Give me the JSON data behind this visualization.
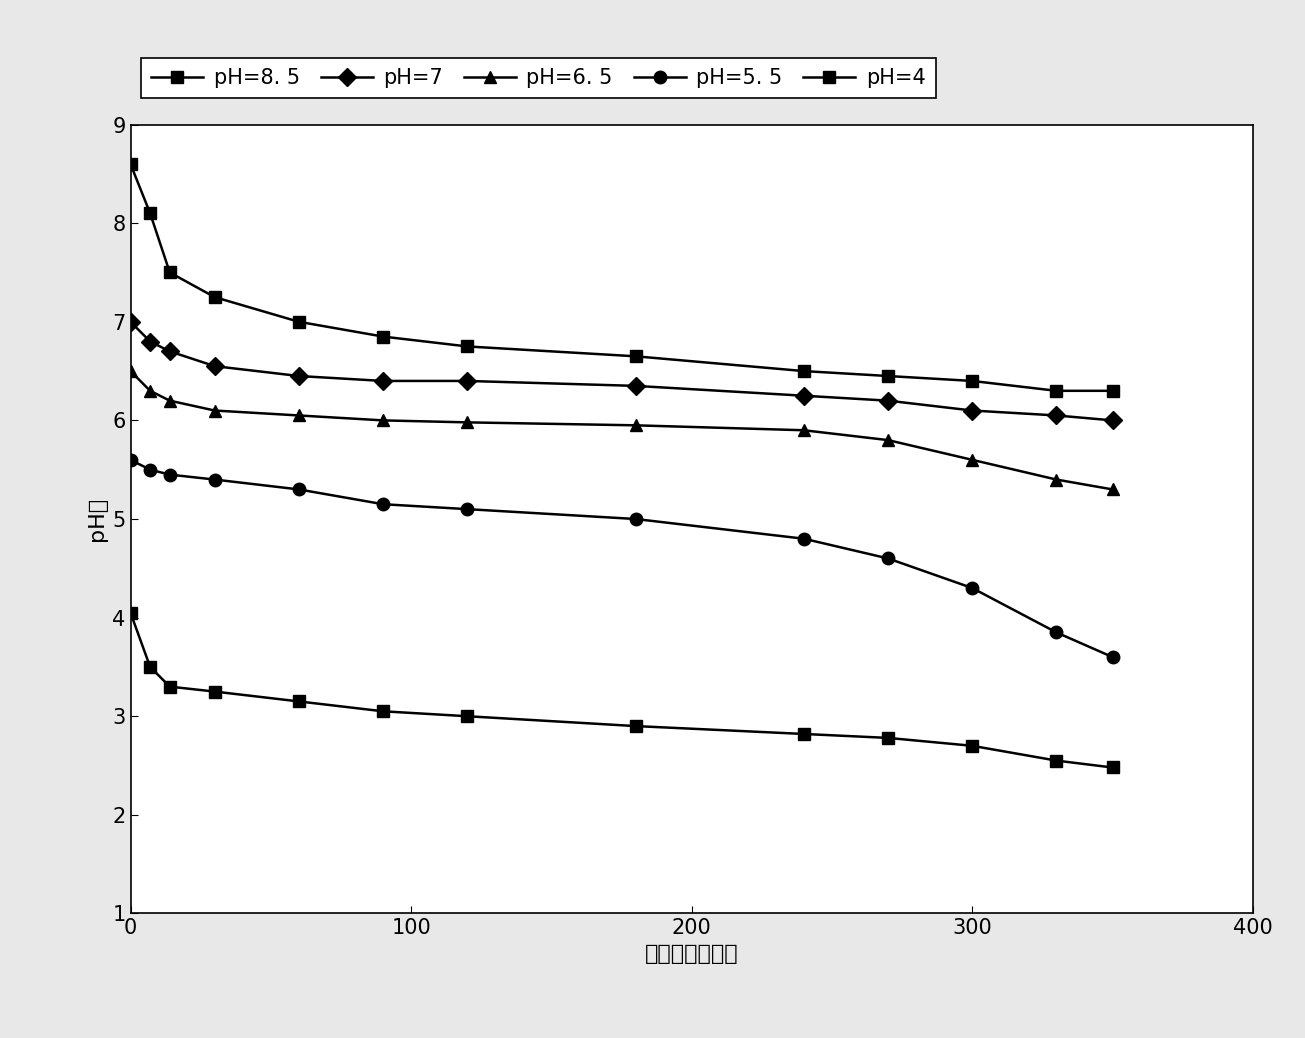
{
  "series": [
    {
      "label": "pH=8. 5",
      "marker": "s",
      "x": [
        0,
        7,
        14,
        30,
        60,
        90,
        120,
        180,
        240,
        270,
        300,
        330,
        350
      ],
      "y": [
        8.6,
        8.1,
        7.5,
        7.25,
        7.0,
        6.85,
        6.75,
        6.65,
        6.5,
        6.45,
        6.4,
        6.3,
        6.3
      ]
    },
    {
      "label": "pH=7",
      "marker": "D",
      "x": [
        0,
        7,
        14,
        30,
        60,
        90,
        120,
        180,
        240,
        270,
        300,
        330,
        350
      ],
      "y": [
        7.0,
        6.8,
        6.7,
        6.55,
        6.45,
        6.4,
        6.4,
        6.35,
        6.25,
        6.2,
        6.1,
        6.05,
        6.0
      ]
    },
    {
      "label": "pH=6. 5",
      "marker": "^",
      "x": [
        0,
        7,
        14,
        30,
        60,
        90,
        120,
        180,
        240,
        270,
        300,
        330,
        350
      ],
      "y": [
        6.5,
        6.3,
        6.2,
        6.1,
        6.05,
        6.0,
        5.98,
        5.95,
        5.9,
        5.8,
        5.6,
        5.4,
        5.3
      ]
    },
    {
      "label": "pH=5. 5",
      "marker": "o",
      "x": [
        0,
        7,
        14,
        30,
        60,
        90,
        120,
        180,
        240,
        270,
        300,
        330,
        350
      ],
      "y": [
        5.6,
        5.5,
        5.45,
        5.4,
        5.3,
        5.15,
        5.1,
        5.0,
        4.8,
        4.6,
        4.3,
        3.85,
        3.6
      ]
    },
    {
      "label": "pH=4",
      "marker": "s",
      "x": [
        0,
        7,
        14,
        30,
        60,
        90,
        120,
        180,
        240,
        270,
        300,
        330,
        350
      ],
      "y": [
        4.05,
        3.5,
        3.3,
        3.25,
        3.15,
        3.05,
        3.0,
        2.9,
        2.82,
        2.78,
        2.7,
        2.55,
        2.48
      ]
    }
  ],
  "xlabel": "购存天数（天）",
  "ylabel": "pH値",
  "xlim": [
    0,
    400
  ],
  "ylim": [
    1,
    9
  ],
  "xticks": [
    0,
    100,
    200,
    300,
    400
  ],
  "yticks": [
    1,
    2,
    3,
    4,
    5,
    6,
    7,
    8,
    9
  ],
  "line_color": "#000000",
  "marker_size": 9,
  "line_width": 1.8,
  "axis_fontsize": 16,
  "tick_fontsize": 15,
  "legend_fontsize": 15,
  "fig_facecolor": "#e8e8e8",
  "ax_facecolor": "#ffffff"
}
